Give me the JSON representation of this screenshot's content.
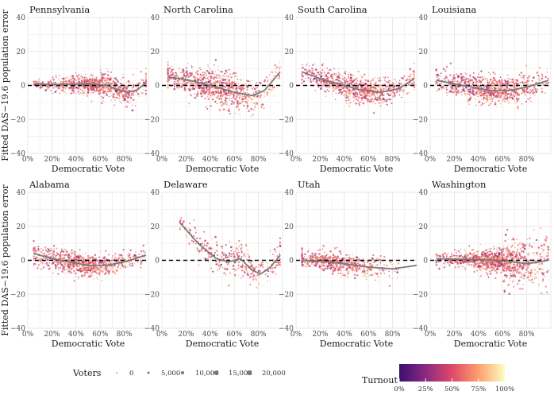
{
  "chart_data": {
    "type": "scatter",
    "xlabel": "Democratic Vote",
    "ylabel": "Fitted DAS−19.6 population error",
    "x_ticks": [
      "0%",
      "20%",
      "40%",
      "60%",
      "80%"
    ],
    "x_tick_values": [
      0,
      0.2,
      0.4,
      0.6,
      0.8
    ],
    "y_ticks": [
      "−40",
      "−20",
      "0",
      "20",
      "40"
    ],
    "y_tick_values": [
      -40,
      -20,
      0,
      20,
      40
    ],
    "xlim": [
      0,
      1
    ],
    "ylim": [
      -40,
      40
    ],
    "reference_line_y": 0,
    "facets": [
      {
        "name": "Pennsylvania",
        "cloud": {
          "x_range": [
            0.05,
            0.98
          ],
          "x_center": 0.6,
          "spread": [
            1.5,
            2.5,
            2.5,
            4,
            3.5
          ],
          "count": 900
        },
        "smooth": [
          [
            0.05,
            1
          ],
          [
            0.2,
            0.5
          ],
          [
            0.4,
            0.8
          ],
          [
            0.55,
            0.8
          ],
          [
            0.65,
            0
          ],
          [
            0.75,
            -2.5
          ],
          [
            0.82,
            -4
          ],
          [
            0.9,
            -3
          ],
          [
            0.98,
            1.5
          ]
        ]
      },
      {
        "name": "North Carolina",
        "cloud": {
          "x_range": [
            0.05,
            0.98
          ],
          "x_center": 0.45,
          "spread": [
            3,
            4.5,
            5.5,
            5.5,
            4.5
          ],
          "count": 900
        },
        "smooth": [
          [
            0.05,
            5
          ],
          [
            0.2,
            3.5
          ],
          [
            0.4,
            0
          ],
          [
            0.6,
            -4
          ],
          [
            0.75,
            -6
          ],
          [
            0.85,
            -3
          ],
          [
            0.98,
            8
          ]
        ]
      },
      {
        "name": "South Carolina",
        "cloud": {
          "x_range": [
            0.05,
            0.98
          ],
          "x_center": 0.5,
          "spread": [
            3,
            3.5,
            4,
            4,
            3.5
          ],
          "count": 900
        },
        "smooth": [
          [
            0.05,
            8
          ],
          [
            0.2,
            4
          ],
          [
            0.4,
            0
          ],
          [
            0.55,
            -3
          ],
          [
            0.7,
            -4
          ],
          [
            0.85,
            -2
          ],
          [
            0.98,
            4
          ]
        ]
      },
      {
        "name": "Louisiana",
        "cloud": {
          "x_range": [
            0.05,
            0.98
          ],
          "x_center": 0.5,
          "spread": [
            3.5,
            4,
            4,
            4,
            3.5
          ],
          "count": 900
        },
        "smooth": [
          [
            0.05,
            3
          ],
          [
            0.2,
            1
          ],
          [
            0.35,
            -1
          ],
          [
            0.5,
            -3
          ],
          [
            0.65,
            -3
          ],
          [
            0.8,
            -1
          ],
          [
            0.98,
            3
          ]
        ]
      },
      {
        "name": "Alabama",
        "cloud": {
          "x_range": [
            0.05,
            0.98
          ],
          "x_center": 0.45,
          "spread": [
            3.5,
            3.5,
            3,
            3,
            2.5
          ],
          "count": 900
        },
        "smooth": [
          [
            0.05,
            4
          ],
          [
            0.2,
            1
          ],
          [
            0.35,
            -1
          ],
          [
            0.5,
            -3
          ],
          [
            0.65,
            -3
          ],
          [
            0.8,
            -1
          ],
          [
            0.98,
            3
          ]
        ]
      },
      {
        "name": "Delaware",
        "cloud": {
          "x_range": [
            0.15,
            0.98
          ],
          "x_center": 0.6,
          "spread": [
            2.5,
            4,
            5,
            5,
            5
          ],
          "count": 380
        },
        "smooth": [
          [
            0.15,
            22
          ],
          [
            0.3,
            10
          ],
          [
            0.45,
            1
          ],
          [
            0.55,
            -1
          ],
          [
            0.65,
            1
          ],
          [
            0.75,
            -6
          ],
          [
            0.82,
            -8
          ],
          [
            0.9,
            -4
          ],
          [
            0.98,
            3
          ]
        ]
      },
      {
        "name": "Utah",
        "cloud": {
          "x_range": [
            0.05,
            0.85
          ],
          "x_center": 0.3,
          "spread": [
            2.5,
            3,
            3,
            3,
            3
          ],
          "count": 700
        },
        "smooth": [
          [
            0.05,
            0
          ],
          [
            0.2,
            -0.5
          ],
          [
            0.4,
            -2
          ],
          [
            0.6,
            -4
          ],
          [
            0.8,
            -5
          ],
          [
            1.0,
            -3
          ]
        ]
      },
      {
        "name": "Washington",
        "cloud": {
          "x_range": [
            0.05,
            0.98
          ],
          "x_center": 0.55,
          "spread": [
            2.5,
            2.5,
            3,
            6,
            8
          ],
          "count": 1200
        },
        "smooth": [
          [
            0.05,
            1
          ],
          [
            0.3,
            0.5
          ],
          [
            0.55,
            0
          ],
          [
            0.7,
            -1
          ],
          [
            0.8,
            -2
          ],
          [
            0.9,
            -1
          ],
          [
            0.98,
            0
          ]
        ]
      }
    ],
    "legend": {
      "voters_title": "Voters",
      "voters_labels": [
        "0",
        "5,000",
        "10,000",
        "15,000",
        "20,000"
      ],
      "turnout_title": "Turnout",
      "turnout_labels": [
        "0%",
        "25%",
        "50%",
        "75%",
        "100%"
      ],
      "turnout_colors": [
        "#3b0f70",
        "#8c2981",
        "#de4968",
        "#fe9f6d",
        "#fcfdbf"
      ]
    },
    "colors": {
      "panel_background": "#ffffff",
      "grid": "#e6e6e6",
      "smooth_line": "#7a7a7a",
      "reference_line": "#000000"
    }
  }
}
